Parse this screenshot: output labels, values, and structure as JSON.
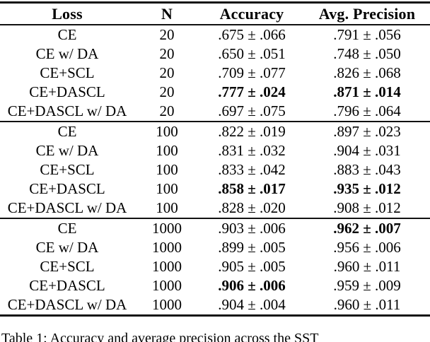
{
  "table": {
    "columns": [
      "Loss",
      "N",
      "Accuracy",
      "Avg. Precision"
    ],
    "groups": [
      {
        "n_label": "20",
        "rows": [
          {
            "loss": "CE",
            "n": "20",
            "accuracy": ".675 ± .066",
            "accuracy_bold": false,
            "avg_precision": ".791 ± .056",
            "avg_precision_bold": false
          },
          {
            "loss": "CE w/ DA",
            "n": "20",
            "accuracy": ".650 ± .051",
            "accuracy_bold": false,
            "avg_precision": ".748 ± .050",
            "avg_precision_bold": false
          },
          {
            "loss": "CE+SCL",
            "n": "20",
            "accuracy": ".709 ± .077",
            "accuracy_bold": false,
            "avg_precision": ".826 ± .068",
            "avg_precision_bold": false
          },
          {
            "loss": "CE+DASCL",
            "n": "20",
            "accuracy": ".777 ± .024",
            "accuracy_bold": true,
            "avg_precision": ".871 ± .014",
            "avg_precision_bold": true
          },
          {
            "loss": "CE+DASCL w/ DA",
            "n": "20",
            "accuracy": ".697 ± .075",
            "accuracy_bold": false,
            "avg_precision": ".796 ± .064",
            "avg_precision_bold": false
          }
        ]
      },
      {
        "n_label": "100",
        "rows": [
          {
            "loss": "CE",
            "n": "100",
            "accuracy": ".822 ± .019",
            "accuracy_bold": false,
            "avg_precision": ".897 ± .023",
            "avg_precision_bold": false
          },
          {
            "loss": "CE w/ DA",
            "n": "100",
            "accuracy": ".831 ± .032",
            "accuracy_bold": false,
            "avg_precision": ".904 ± .031",
            "avg_precision_bold": false
          },
          {
            "loss": "CE+SCL",
            "n": "100",
            "accuracy": ".833 ± .042",
            "accuracy_bold": false,
            "avg_precision": ".883 ± .043",
            "avg_precision_bold": false
          },
          {
            "loss": "CE+DASCL",
            "n": "100",
            "accuracy": ".858 ± .017",
            "accuracy_bold": true,
            "avg_precision": ".935 ± .012",
            "avg_precision_bold": true
          },
          {
            "loss": "CE+DASCL w/ DA",
            "n": "100",
            "accuracy": ".828 ± .020",
            "accuracy_bold": false,
            "avg_precision": ".908 ± .012",
            "avg_precision_bold": false
          }
        ]
      },
      {
        "n_label": "1000",
        "rows": [
          {
            "loss": "CE",
            "n": "1000",
            "accuracy": ".903 ± .006",
            "accuracy_bold": false,
            "avg_precision": ".962 ± .007",
            "avg_precision_bold": true
          },
          {
            "loss": "CE w/ DA",
            "n": "1000",
            "accuracy": ".899 ± .005",
            "accuracy_bold": false,
            "avg_precision": ".956 ± .006",
            "avg_precision_bold": false
          },
          {
            "loss": "CE+SCL",
            "n": "1000",
            "accuracy": ".905 ± .005",
            "accuracy_bold": false,
            "avg_precision": ".960 ± .011",
            "avg_precision_bold": false
          },
          {
            "loss": "CE+DASCL",
            "n": "1000",
            "accuracy": ".906 ± .006",
            "accuracy_bold": true,
            "avg_precision": ".959 ± .009",
            "avg_precision_bold": false
          },
          {
            "loss": "CE+DASCL w/ DA",
            "n": "1000",
            "accuracy": ".904 ± .004",
            "accuracy_bold": false,
            "avg_precision": ".960 ± .011",
            "avg_precision_bold": false
          }
        ]
      }
    ]
  },
  "caption": {
    "text": "Table 1: Accuracy and average precision across the SST"
  }
}
